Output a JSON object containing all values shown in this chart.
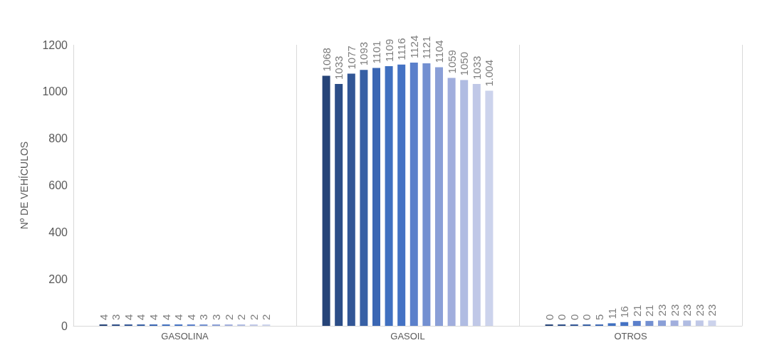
{
  "chart_data": {
    "type": "bar",
    "ylabel": "Nº DE VEHÍCULOS",
    "categories": [
      "GASOLINA",
      "GASOIL",
      "OTROS"
    ],
    "ylim": [
      0,
      1200
    ],
    "yticks": [
      0,
      200,
      400,
      600,
      800,
      1000,
      1200
    ],
    "grid": "x",
    "series": [
      {
        "color": "#264478",
        "values": [
          4,
          1068,
          0
        ],
        "value_labels": [
          "4",
          "1068",
          "0"
        ]
      },
      {
        "color": "#2c4d87",
        "values": [
          3,
          1033,
          0
        ],
        "value_labels": [
          "3",
          "1033",
          "0"
        ]
      },
      {
        "color": "#325696",
        "values": [
          4,
          1077,
          0
        ],
        "value_labels": [
          "4",
          "1077",
          "0"
        ]
      },
      {
        "color": "#3760a5",
        "values": [
          4,
          1093,
          0
        ],
        "value_labels": [
          "4",
          "1093",
          "0"
        ]
      },
      {
        "color": "#3b67b4",
        "values": [
          4,
          1101,
          5
        ],
        "value_labels": [
          "4",
          "1101",
          "5"
        ]
      },
      {
        "color": "#4070c0",
        "values": [
          4,
          1109,
          11
        ],
        "value_labels": [
          "4",
          "1109",
          "11"
        ]
      },
      {
        "color": "#4472c4",
        "values": [
          4,
          1116,
          16
        ],
        "value_labels": [
          "4",
          "1116",
          "16"
        ]
      },
      {
        "color": "#5b80cb",
        "values": [
          4,
          1124,
          21
        ],
        "value_labels": [
          "4",
          "1124",
          "21"
        ]
      },
      {
        "color": "#7390d1",
        "values": [
          3,
          1121,
          21
        ],
        "value_labels": [
          "3",
          "1121",
          "21"
        ]
      },
      {
        "color": "#8a9fd7",
        "values": [
          3,
          1104,
          23
        ],
        "value_labels": [
          "3",
          "1104",
          "23"
        ]
      },
      {
        "color": "#a1aedd",
        "values": [
          2,
          1059,
          23
        ],
        "value_labels": [
          "2",
          "1059",
          "23"
        ]
      },
      {
        "color": "#b0bce2",
        "values": [
          2,
          1050,
          23
        ],
        "value_labels": [
          "2",
          "1050",
          "23"
        ]
      },
      {
        "color": "#c0c8e7",
        "values": [
          2,
          1033,
          23
        ],
        "value_labels": [
          "2",
          "1033",
          "23"
        ]
      },
      {
        "color": "#ccd3ec",
        "values": [
          2,
          1004,
          23
        ],
        "value_labels": [
          "2",
          "1.004",
          "23"
        ]
      }
    ]
  }
}
